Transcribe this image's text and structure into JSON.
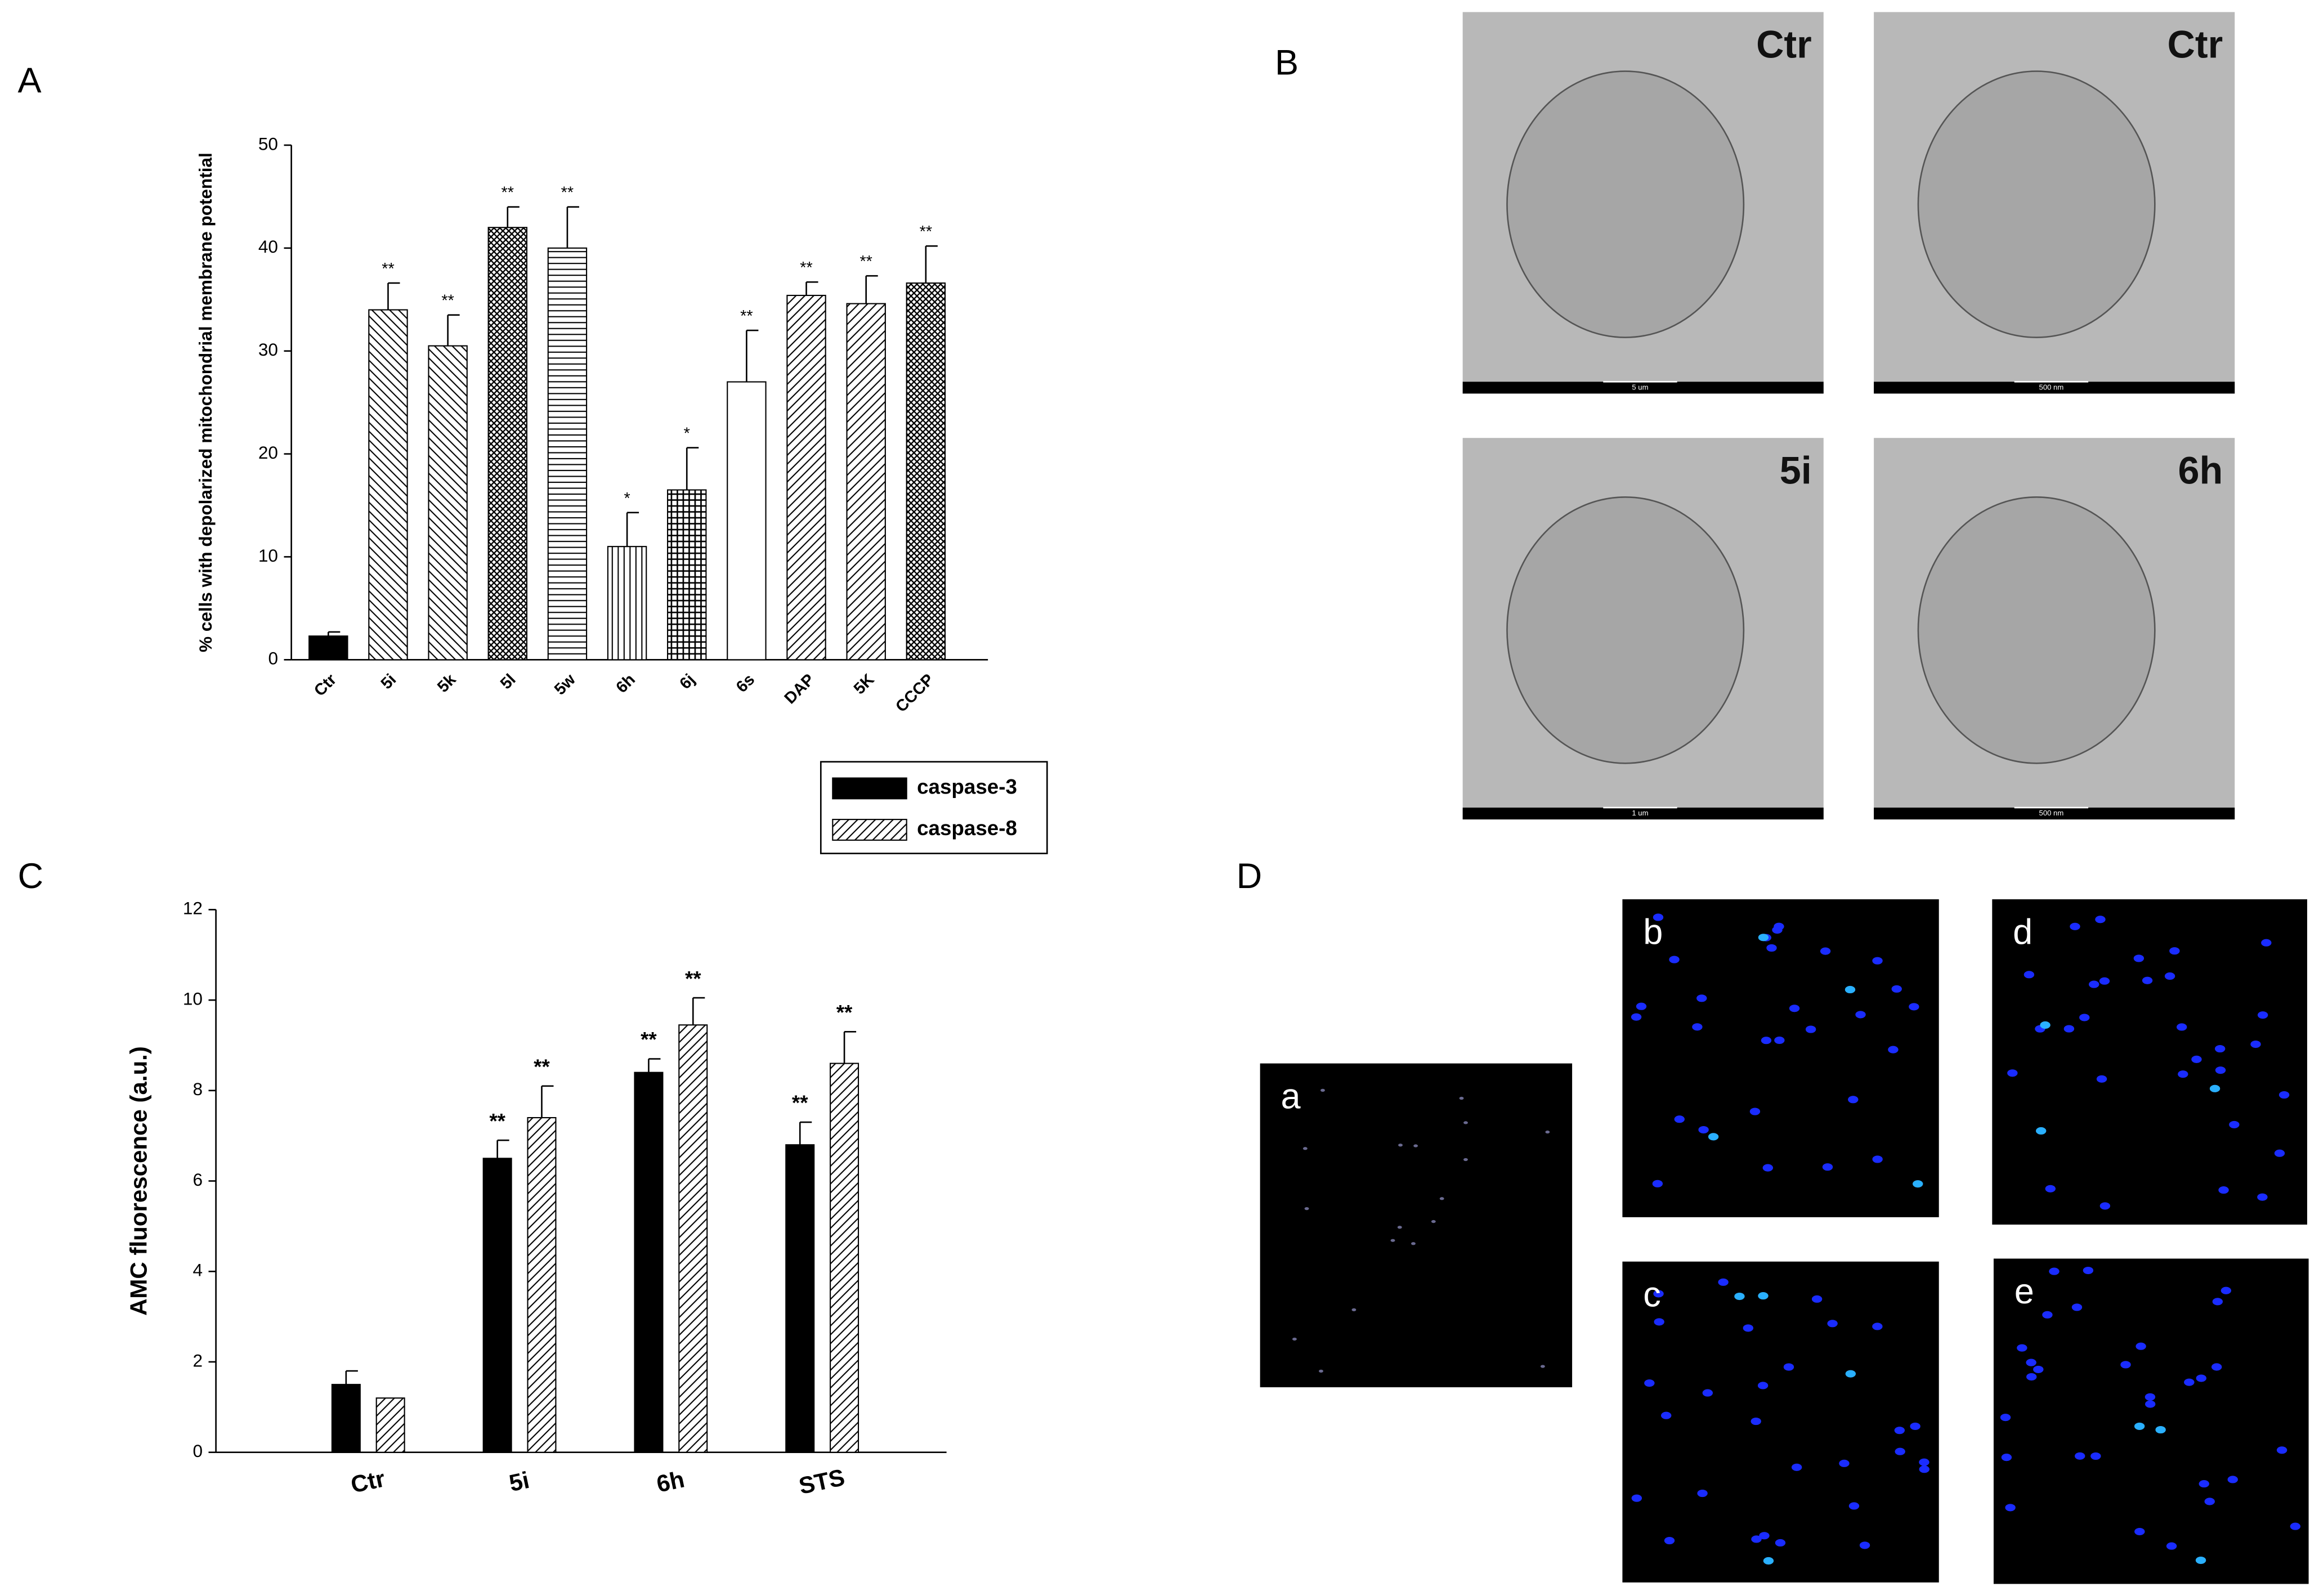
{
  "panel_labels": [
    "A",
    "B",
    "C",
    "D"
  ],
  "chart_data": [
    {
      "type": "bar",
      "ylabel": "% cells with depolarized mitochondrial membrane potential",
      "categories": [
        "Ctr",
        "5i",
        "5k",
        "5l",
        "5w",
        "6h",
        "6j",
        "6s",
        "DAP",
        "5K",
        "CCCP"
      ],
      "values": [
        2.3,
        34,
        30.5,
        42,
        40,
        11,
        16.5,
        27,
        35.4,
        34.6,
        36.6
      ],
      "errors": [
        0.4,
        2.6,
        3,
        2,
        4,
        3.3,
        4.1,
        5,
        1.3,
        2.7,
        3.6
      ],
      "annotations": [
        null,
        "**",
        "**",
        "**",
        "**",
        "*",
        "*",
        "**",
        "**",
        "**",
        "**"
      ],
      "patterns": [
        "solid",
        "diag",
        "diag",
        "crosshatch",
        "hlines",
        "vlines",
        "grid",
        "open",
        "diag-right",
        "diag-right",
        "crosshatch"
      ],
      "ylim": [
        0,
        50
      ],
      "yticks": [
        0,
        10,
        20,
        30,
        40,
        50
      ],
      "grid": false
    },
    {
      "type": "grouped-bar",
      "ylabel": "AMC fluorescence (a.u.)",
      "categories": [
        "Ctr",
        "5i",
        "6h",
        "STS"
      ],
      "series": [
        {
          "name": "caspase-3",
          "color": "#000000",
          "pattern": "solid",
          "values": [
            1.5,
            6.5,
            8.4,
            6.8
          ],
          "errors": [
            0.3,
            0.4,
            0.3,
            0.5
          ],
          "annotations": [
            null,
            "**",
            "**",
            "**"
          ]
        },
        {
          "name": "caspase-8",
          "color": "#000000",
          "pattern": "diag-right",
          "values": [
            1.2,
            7.4,
            9.45,
            8.6
          ],
          "errors": [
            null,
            0.7,
            0.6,
            0.7
          ],
          "annotations": [
            null,
            "**",
            "**",
            "**"
          ]
        }
      ],
      "ylim": [
        0,
        12
      ],
      "yticks": [
        0,
        2,
        4,
        6,
        8,
        10,
        12
      ],
      "grid": false,
      "legend": "top-right"
    }
  ],
  "micrographs": [
    {
      "label": "Ctr",
      "scale": "5 um"
    },
    {
      "label": "Ctr",
      "scale": "500 nm"
    },
    {
      "label": "5i",
      "scale": "1 um"
    },
    {
      "label": "6h",
      "scale": "500 nm"
    }
  ],
  "fluorescence_images": [
    "a",
    "b",
    "c",
    "d",
    "e"
  ]
}
